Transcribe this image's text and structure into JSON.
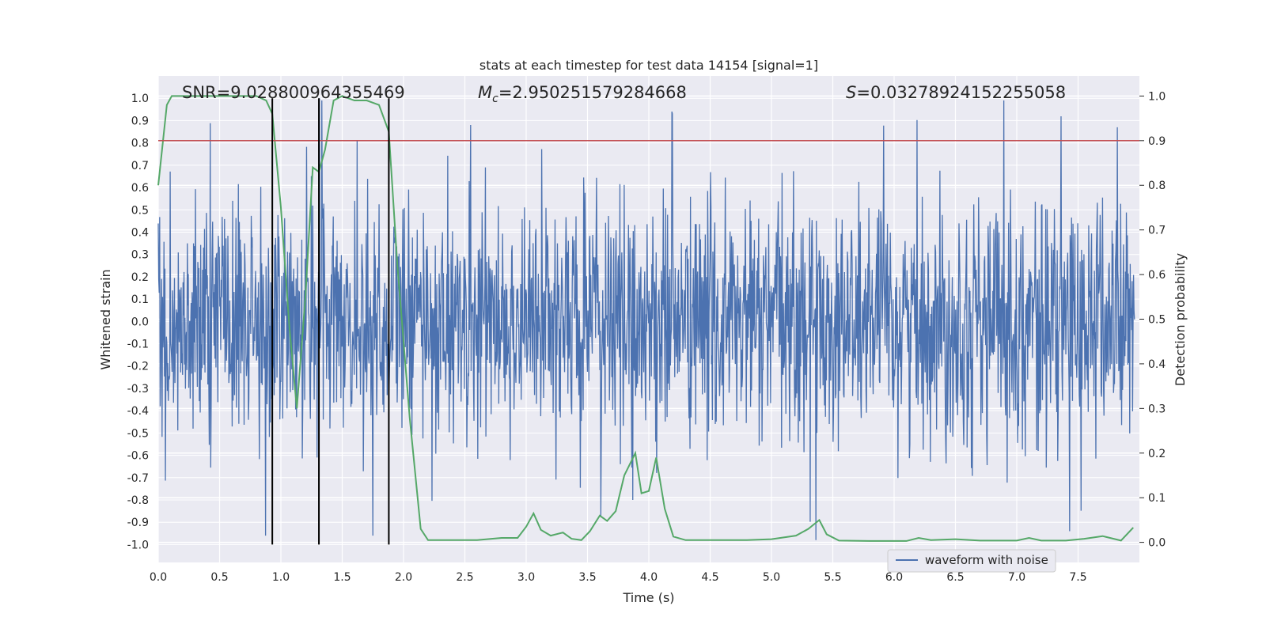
{
  "chart_data": {
    "type": "line",
    "title": "stats at each timestep for test data 14154 [signal=1]",
    "xlabel": "Time (s)",
    "ylabel_left": "Whitened strain",
    "ylabel_right": "Detection probability",
    "xlim": [
      0.0,
      8.0
    ],
    "ylim_left": [
      -1.08,
      1.1
    ],
    "ylim_right": [
      -0.045,
      1.045
    ],
    "xticks": [
      0.0,
      0.5,
      1.0,
      1.5,
      2.0,
      2.5,
      3.0,
      3.5,
      4.0,
      4.5,
      5.0,
      5.5,
      6.0,
      6.5,
      7.0,
      7.5
    ],
    "xtick_labels": [
      "0.0",
      "0.5",
      "1.0",
      "1.5",
      "2.0",
      "2.5",
      "3.0",
      "3.5",
      "4.0",
      "4.5",
      "5.0",
      "5.5",
      "6.0",
      "6.5",
      "7.0",
      "7.5"
    ],
    "yticks_left": [
      1.0,
      0.9,
      0.8,
      0.7,
      0.6,
      0.5,
      0.4,
      0.3,
      0.2,
      0.1,
      0.0,
      -0.1,
      -0.2,
      -0.3,
      -0.4,
      -0.5,
      -0.6,
      -0.7,
      -0.8,
      -0.9,
      -1.0
    ],
    "ytick_labels_left": [
      "1.0",
      "0.9",
      "0.8",
      "0.7",
      "0.6",
      "0.5",
      "0.4",
      "0.3",
      "0.2",
      "0.1",
      "0.0",
      "-0.1",
      "-0.2",
      "-0.3",
      "-0.4",
      "-0.5",
      "-0.6",
      "-0.7",
      "-0.8",
      "-0.9",
      "-1.0"
    ],
    "yticks_right": [
      1.0,
      0.9,
      0.8,
      0.7,
      0.6,
      0.5,
      0.4,
      0.3,
      0.2,
      0.1,
      0.0
    ],
    "ytick_labels_right": [
      "1.0",
      "0.9",
      "0.8",
      "0.7",
      "0.6",
      "0.5",
      "0.4",
      "0.3",
      "0.2",
      "0.1",
      "0.0"
    ],
    "annotations": {
      "snr": "SNR=9.028800964355469",
      "mc_symbol": "M",
      "mc_sub": "c",
      "mc_value": "=2.950251579284668",
      "s_symbol": "S",
      "s_value": "=0.03278924152255058"
    },
    "legend": {
      "label": "waveform with noise",
      "position": "lower-right"
    },
    "threshold": {
      "axis": "right",
      "value": 0.9,
      "color": "#c44e52"
    },
    "vlines": [
      0.93,
      1.31,
      1.88
    ],
    "series": [
      {
        "name": "waveform with noise",
        "axis": "left",
        "color": "#4c72b0",
        "kind": "noise",
        "samples": 2048,
        "seed": 14154,
        "spikes": [
          {
            "t": 0.88,
            "v": -0.96
          },
          {
            "t": 1.32,
            "v": 1.0
          },
          {
            "t": 1.34,
            "v": 0.99
          },
          {
            "t": 1.76,
            "v": -0.96
          },
          {
            "t": 1.63,
            "v": 0.81
          },
          {
            "t": 4.21,
            "v": 0.94
          },
          {
            "t": 5.39,
            "v": -0.98
          },
          {
            "t": 6.93,
            "v": 0.99
          },
          {
            "t": 7.86,
            "v": 0.87
          },
          {
            "t": 3.89,
            "v": -0.8
          },
          {
            "t": 2.56,
            "v": 0.88
          },
          {
            "t": 7.47,
            "v": -0.94
          }
        ]
      },
      {
        "name": "detection probability",
        "axis": "right",
        "color": "#55a868",
        "x": [
          0.0,
          0.07,
          0.11,
          0.2,
          0.4,
          0.6,
          0.8,
          0.88,
          0.93,
          1.0,
          1.07,
          1.13,
          1.2,
          1.26,
          1.31,
          1.36,
          1.43,
          1.5,
          1.6,
          1.7,
          1.8,
          1.88,
          1.95,
          2.05,
          2.14,
          2.2,
          2.4,
          2.6,
          2.8,
          2.93,
          3.0,
          3.06,
          3.12,
          3.2,
          3.3,
          3.37,
          3.45,
          3.52,
          3.6,
          3.66,
          3.73,
          3.8,
          3.89,
          3.94,
          4.0,
          4.06,
          4.13,
          4.2,
          4.3,
          4.5,
          4.8,
          5.0,
          5.2,
          5.3,
          5.39,
          5.45,
          5.55,
          5.8,
          6.1,
          6.2,
          6.3,
          6.5,
          6.7,
          7.0,
          7.1,
          7.2,
          7.4,
          7.55,
          7.7,
          7.85,
          7.95
        ],
        "values": [
          0.8,
          0.98,
          1.0,
          1.0,
          1.0,
          1.0,
          1.0,
          0.99,
          0.96,
          0.75,
          0.48,
          0.3,
          0.55,
          0.84,
          0.83,
          0.88,
          0.99,
          1.0,
          0.99,
          0.99,
          0.98,
          0.92,
          0.62,
          0.28,
          0.03,
          0.005,
          0.005,
          0.005,
          0.01,
          0.01,
          0.035,
          0.065,
          0.028,
          0.015,
          0.022,
          0.008,
          0.005,
          0.025,
          0.06,
          0.048,
          0.07,
          0.15,
          0.2,
          0.11,
          0.115,
          0.19,
          0.075,
          0.013,
          0.005,
          0.005,
          0.005,
          0.007,
          0.015,
          0.03,
          0.05,
          0.018,
          0.004,
          0.003,
          0.003,
          0.01,
          0.005,
          0.007,
          0.004,
          0.004,
          0.01,
          0.004,
          0.004,
          0.008,
          0.014,
          0.004,
          0.033
        ]
      }
    ]
  }
}
